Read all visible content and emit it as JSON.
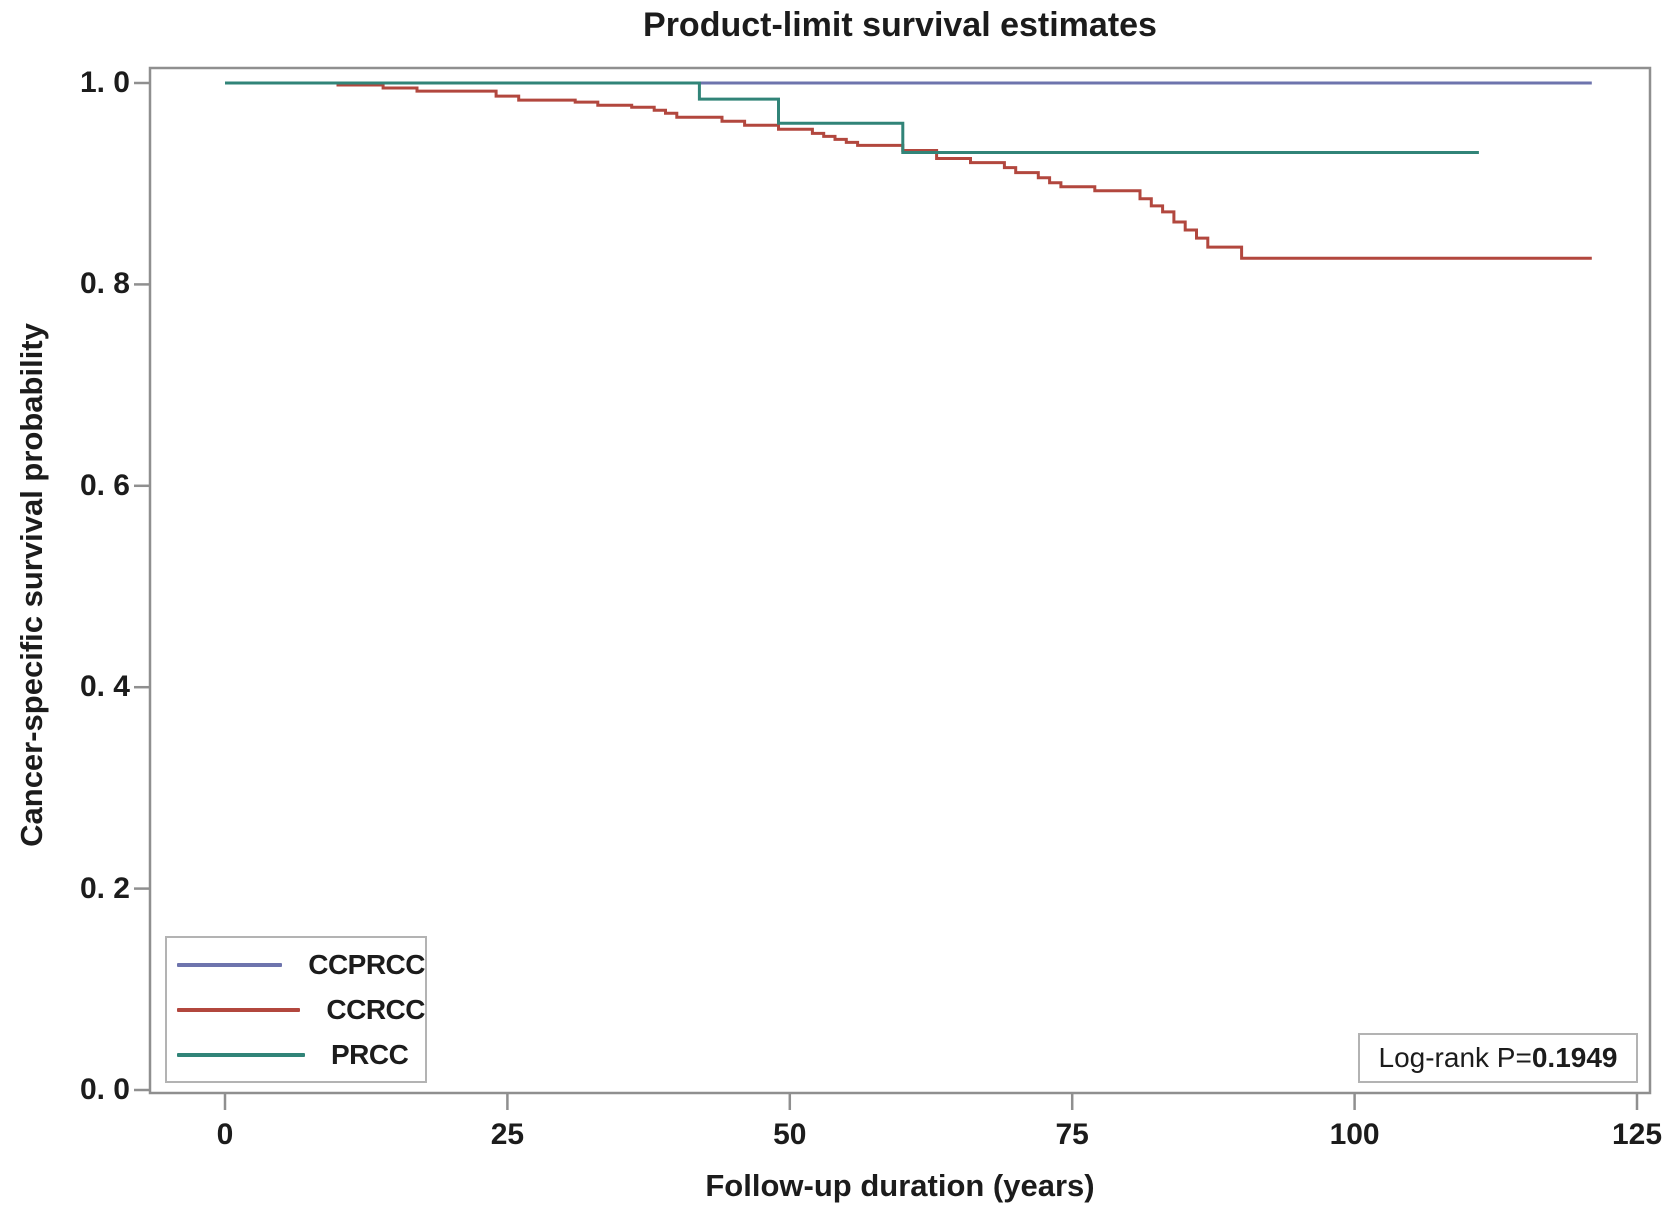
{
  "chart": {
    "title": "Product-limit survival estimates",
    "xlabel": "Follow-up duration (years)",
    "ylabel": "Cancer-specific survival probability"
  },
  "annotation": {
    "prefix": "Log-rank P=",
    "value": "0.1949"
  },
  "legend": {
    "items": [
      {
        "label": "CCPRCC",
        "color": "#6e74ad"
      },
      {
        "label": "CCRCC",
        "color": "#b2473e"
      },
      {
        "label": "PRCC",
        "color": "#318478"
      }
    ]
  },
  "colors": {
    "frame": "#8f8f8f",
    "tick": "#8f8f8f",
    "box_border": "#b3b3b3",
    "ccprcc": "#6e74ad",
    "ccrcc": "#b2473e",
    "prcc": "#318478"
  },
  "chart_data": {
    "type": "line",
    "subtype": "kaplan-meier-step",
    "title": "Product-limit survival estimates",
    "xlabel": "Follow-up duration (years)",
    "ylabel": "Cancer-specific survival probability",
    "xlim": [
      0,
      125
    ],
    "ylim": [
      0.0,
      1.0
    ],
    "grid": false,
    "legend_position": "bottom-left-inside",
    "x_ticks": [
      {
        "value": 0,
        "label": "0"
      },
      {
        "value": 25,
        "label": "25"
      },
      {
        "value": 50,
        "label": "50"
      },
      {
        "value": 75,
        "label": "75"
      },
      {
        "value": 100,
        "label": "100"
      },
      {
        "value": 125,
        "label": "125"
      }
    ],
    "y_ticks": [
      {
        "value": 1.0,
        "label": "1. 0"
      },
      {
        "value": 0.8,
        "label": "0. 8"
      },
      {
        "value": 0.6,
        "label": "0. 6"
      },
      {
        "value": 0.4,
        "label": "0. 4"
      },
      {
        "value": 0.2,
        "label": "0. 2"
      },
      {
        "value": 0.0,
        "label": "0. 0"
      }
    ],
    "series": [
      {
        "name": "CCPRCC",
        "color": "#6e74ad",
        "points": [
          [
            0,
            1.0
          ],
          [
            121,
            1.0
          ]
        ]
      },
      {
        "name": "CCRCC",
        "color": "#b2473e",
        "points": [
          [
            0,
            1.0
          ],
          [
            10,
            0.998
          ],
          [
            14,
            0.995
          ],
          [
            17,
            0.992
          ],
          [
            24,
            0.987
          ],
          [
            26,
            0.983
          ],
          [
            31,
            0.981
          ],
          [
            33,
            0.978
          ],
          [
            36,
            0.976
          ],
          [
            38,
            0.973
          ],
          [
            39,
            0.97
          ],
          [
            40,
            0.966
          ],
          [
            44,
            0.962
          ],
          [
            46,
            0.958
          ],
          [
            49,
            0.954
          ],
          [
            52,
            0.95
          ],
          [
            53,
            0.947
          ],
          [
            54,
            0.944
          ],
          [
            55,
            0.941
          ],
          [
            56,
            0.938
          ],
          [
            60,
            0.933
          ],
          [
            63,
            0.925
          ],
          [
            66,
            0.921
          ],
          [
            69,
            0.916
          ],
          [
            70,
            0.911
          ],
          [
            72,
            0.906
          ],
          [
            73,
            0.901
          ],
          [
            74,
            0.897
          ],
          [
            77,
            0.893
          ],
          [
            81,
            0.885
          ],
          [
            82,
            0.878
          ],
          [
            83,
            0.872
          ],
          [
            84,
            0.862
          ],
          [
            85,
            0.854
          ],
          [
            86,
            0.846
          ],
          [
            87,
            0.837
          ],
          [
            90,
            0.826
          ],
          [
            121,
            0.826
          ]
        ]
      },
      {
        "name": "PRCC",
        "color": "#318478",
        "points": [
          [
            0,
            1.0
          ],
          [
            42,
            0.984
          ],
          [
            49,
            0.96
          ],
          [
            60,
            0.931
          ],
          [
            111,
            0.931
          ]
        ]
      }
    ],
    "annotations": [
      {
        "text": "Log-rank P=0.1949",
        "position": "bottom-right-inside"
      }
    ]
  }
}
